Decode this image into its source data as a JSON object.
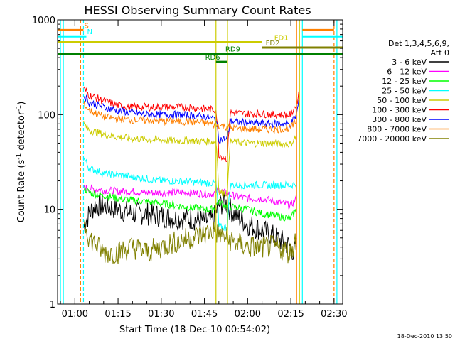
{
  "chart_data": {
    "type": "line",
    "title": "HESSI Observing Summary Count Rates",
    "xlabel": "Start Time (18-Dec-10 00:54:02)",
    "ylabel_main": "Count Rate (s",
    "ylabel_sup1": "-1",
    "ylabel_mid": " detector",
    "ylabel_sup2": "-1",
    "ylabel_end": ")",
    "footer": "18-Dec-2010 13:50",
    "x_range_minutes": [
      "00:54",
      "02:33"
    ],
    "y_scale": "log",
    "ylim": [
      1,
      1000
    ],
    "x_ticks": [
      "01:00",
      "01:15",
      "01:30",
      "01:45",
      "02:00",
      "02:15",
      "02:30"
    ],
    "y_ticks": [
      "1",
      "10",
      "100",
      "1000"
    ],
    "legend_header": [
      "Det 1,3,4,5,6,9,",
      "Att 0"
    ],
    "legend_placement": "right",
    "series": [
      {
        "name": "3 - 6 keV",
        "color": "#000000",
        "points": [
          [
            "01:03",
            6.5
          ],
          [
            "01:05",
            9
          ],
          [
            "01:07",
            11
          ],
          [
            "01:10",
            11
          ],
          [
            "01:15",
            10
          ],
          [
            "01:20",
            9
          ],
          [
            "01:25",
            9
          ],
          [
            "01:30",
            8.5
          ],
          [
            "01:35",
            8
          ],
          [
            "01:40",
            8
          ],
          [
            "01:45",
            7.5
          ],
          [
            "01:48",
            7.5
          ],
          [
            "01:50",
            11
          ],
          [
            "01:52",
            12
          ],
          [
            "01:55",
            9
          ],
          [
            "02:00",
            7
          ],
          [
            "02:05",
            6
          ],
          [
            "02:10",
            5
          ],
          [
            "02:15",
            4
          ],
          [
            "02:16",
            3.5
          ],
          [
            "02:17",
            4
          ]
        ]
      },
      {
        "name": "6 - 12 keV",
        "color": "#ff00ff",
        "points": [
          [
            "01:03",
            17
          ],
          [
            "01:05",
            16.5
          ],
          [
            "01:10",
            16
          ],
          [
            "01:15",
            15.5
          ],
          [
            "01:20",
            15.5
          ],
          [
            "01:25",
            15
          ],
          [
            "01:30",
            15
          ],
          [
            "01:35",
            15
          ],
          [
            "01:40",
            15
          ],
          [
            "01:45",
            14.5
          ],
          [
            "01:48",
            14.5
          ],
          [
            "01:50",
            16
          ],
          [
            "01:52",
            15
          ],
          [
            "01:55",
            14
          ],
          [
            "02:00",
            13
          ],
          [
            "02:05",
            13
          ],
          [
            "02:10",
            12
          ],
          [
            "02:15",
            11
          ],
          [
            "02:17",
            13
          ]
        ]
      },
      {
        "name": "12 - 25 keV",
        "color": "#00ff00",
        "points": [
          [
            "01:03",
            17
          ],
          [
            "01:05",
            15
          ],
          [
            "01:10",
            14
          ],
          [
            "01:15",
            13
          ],
          [
            "01:20",
            12.5
          ],
          [
            "01:25",
            12
          ],
          [
            "01:30",
            11.5
          ],
          [
            "01:35",
            11
          ],
          [
            "01:40",
            10.5
          ],
          [
            "01:45",
            10
          ],
          [
            "01:48",
            10
          ],
          [
            "01:50",
            12
          ],
          [
            "01:52",
            11
          ],
          [
            "01:55",
            10.5
          ],
          [
            "02:00",
            10
          ],
          [
            "02:05",
            9
          ],
          [
            "02:10",
            8.5
          ],
          [
            "02:15",
            8
          ],
          [
            "02:17",
            10
          ]
        ]
      },
      {
        "name": "25 - 50 keV",
        "color": "#00ffff",
        "points": [
          [
            "01:03",
            35
          ],
          [
            "01:05",
            27
          ],
          [
            "01:10",
            24
          ],
          [
            "01:15",
            23
          ],
          [
            "01:20",
            22
          ],
          [
            "01:25",
            21
          ],
          [
            "01:30",
            20
          ],
          [
            "01:35",
            20
          ],
          [
            "01:40",
            19.5
          ],
          [
            "01:45",
            19
          ],
          [
            "01:49",
            19
          ],
          [
            "01:50",
            6.5
          ],
          [
            "01:53",
            6.5
          ],
          [
            "01:54",
            18
          ],
          [
            "02:00",
            18
          ],
          [
            "02:05",
            18
          ],
          [
            "02:10",
            18
          ],
          [
            "02:15",
            18
          ],
          [
            "02:17",
            19
          ]
        ]
      },
      {
        "name": "50 - 100 keV",
        "color": "#cccc00",
        "points": [
          [
            "01:03",
            80
          ],
          [
            "01:05",
            68
          ],
          [
            "01:10",
            62
          ],
          [
            "01:15",
            58
          ],
          [
            "01:20",
            56
          ],
          [
            "01:25",
            55
          ],
          [
            "01:30",
            54
          ],
          [
            "01:35",
            53
          ],
          [
            "01:40",
            53
          ],
          [
            "01:45",
            52
          ],
          [
            "01:49",
            52
          ],
          [
            "01:50",
            15
          ],
          [
            "01:53",
            15
          ],
          [
            "01:54",
            52
          ],
          [
            "02:00",
            50
          ],
          [
            "02:05",
            50
          ],
          [
            "02:10",
            49
          ],
          [
            "02:15",
            49
          ],
          [
            "02:17",
            60
          ]
        ]
      },
      {
        "name": "100 - 300 keV",
        "color": "#ff0000",
        "points": [
          [
            "01:03",
            190
          ],
          [
            "01:05",
            160
          ],
          [
            "01:10",
            140
          ],
          [
            "01:15",
            125
          ],
          [
            "01:20",
            120
          ],
          [
            "01:25",
            120
          ],
          [
            "01:30",
            120
          ],
          [
            "01:35",
            120
          ],
          [
            "01:40",
            120
          ],
          [
            "01:45",
            115
          ],
          [
            "01:49",
            112
          ],
          [
            "01:50",
            38
          ],
          [
            "01:53",
            34
          ],
          [
            "01:54",
            105
          ],
          [
            "02:00",
            102
          ],
          [
            "02:05",
            102
          ],
          [
            "02:10",
            100
          ],
          [
            "02:15",
            100
          ],
          [
            "02:17",
            130
          ],
          [
            "02:18",
            180
          ]
        ]
      },
      {
        "name": "300 - 800 keV",
        "color": "#0000ff",
        "points": [
          [
            "01:03",
            160
          ],
          [
            "01:05",
            135
          ],
          [
            "01:10",
            120
          ],
          [
            "01:15",
            110
          ],
          [
            "01:20",
            105
          ],
          [
            "01:25",
            100
          ],
          [
            "01:30",
            100
          ],
          [
            "01:35",
            100
          ],
          [
            "01:40",
            98
          ],
          [
            "01:45",
            95
          ],
          [
            "01:49",
            90
          ],
          [
            "01:50",
            55
          ],
          [
            "01:53",
            55
          ],
          [
            "01:54",
            85
          ],
          [
            "02:00",
            82
          ],
          [
            "02:05",
            80
          ],
          [
            "02:10",
            80
          ],
          [
            "02:15",
            80
          ],
          [
            "02:17",
            100
          ],
          [
            "02:18",
            150
          ]
        ]
      },
      {
        "name": "800 - 7000 keV",
        "color": "#ff8000",
        "points": [
          [
            "01:03",
            130
          ],
          [
            "01:05",
            110
          ],
          [
            "01:10",
            95
          ],
          [
            "01:15",
            90
          ],
          [
            "01:20",
            88
          ],
          [
            "01:25",
            87
          ],
          [
            "01:30",
            85
          ],
          [
            "01:35",
            85
          ],
          [
            "01:40",
            84
          ],
          [
            "01:45",
            82
          ],
          [
            "01:49",
            78
          ],
          [
            "01:52",
            75
          ],
          [
            "01:55",
            72
          ],
          [
            "02:00",
            70
          ],
          [
            "02:05",
            70
          ],
          [
            "02:10",
            70
          ],
          [
            "02:15",
            72
          ],
          [
            "02:17",
            85
          ]
        ]
      },
      {
        "name": "7000 - 20000 keV",
        "color": "#808000",
        "points": [
          [
            "01:03",
            8
          ],
          [
            "01:05",
            5
          ],
          [
            "01:08",
            4
          ],
          [
            "01:10",
            3.5
          ],
          [
            "01:15",
            3.5
          ],
          [
            "01:20",
            4
          ],
          [
            "01:25",
            3.5
          ],
          [
            "01:30",
            4
          ],
          [
            "01:35",
            4.5
          ],
          [
            "01:40",
            5
          ],
          [
            "01:45",
            5.5
          ],
          [
            "01:48",
            6
          ],
          [
            "01:50",
            5.5
          ],
          [
            "01:55",
            4.5
          ],
          [
            "02:00",
            4
          ],
          [
            "02:05",
            4
          ],
          [
            "02:10",
            4
          ],
          [
            "02:15",
            3.5
          ],
          [
            "02:17",
            5
          ]
        ]
      }
    ],
    "flags": [
      {
        "label": "S",
        "color": "#ff8000",
        "start": "00:54",
        "end": "01:03",
        "y": 780,
        "label_at": "01:03"
      },
      {
        "label": "N",
        "color": "#00ffff",
        "start": "00:54",
        "end": "01:04",
        "y": 670,
        "label_at": "01:04"
      },
      {
        "label": "FD1",
        "color": "#cccc00",
        "start": "00:54",
        "end": "02:05",
        "y": 580,
        "label_at": "02:09"
      },
      {
        "label": "FD2",
        "color": "#808000",
        "start": "02:05",
        "end": "02:33",
        "y": 510,
        "label_at": "02:06"
      },
      {
        "label": "RD9",
        "color": "#008000",
        "start": "00:54",
        "end": "02:33",
        "y": 440,
        "label_at": "01:52"
      },
      {
        "label": "RD6",
        "color": "#008000",
        "start": "01:49",
        "end": "01:53",
        "y": 360,
        "label_at": "01:45"
      },
      {
        "label": "",
        "color": "#ff8000",
        "start": "02:19",
        "end": "02:30",
        "y": 780,
        "label_at": ""
      },
      {
        "label": "",
        "color": "#00ffff",
        "start": "02:19",
        "end": "02:33",
        "y": 670,
        "label_at": ""
      }
    ],
    "vertical_markers": [
      {
        "time": "00:55",
        "color": "#00ffff",
        "style": "solid"
      },
      {
        "time": "00:56",
        "color": "#00ffff",
        "style": "solid"
      },
      {
        "time": "01:02",
        "color": "#ff8000",
        "style": "dashed"
      },
      {
        "time": "01:03",
        "color": "#00ffff",
        "style": "dashed"
      },
      {
        "time": "01:49",
        "color": "#cccc00",
        "style": "solid"
      },
      {
        "time": "01:53",
        "color": "#cccc00",
        "style": "solid"
      },
      {
        "time": "02:17",
        "color": "#ff8000",
        "style": "solid"
      },
      {
        "time": "02:18",
        "color": "#cccc00",
        "style": "solid"
      },
      {
        "time": "02:19",
        "color": "#00ffff",
        "style": "solid"
      },
      {
        "time": "02:30",
        "color": "#ff8000",
        "style": "dashed"
      },
      {
        "time": "02:31",
        "color": "#00ffff",
        "style": "solid"
      }
    ]
  }
}
